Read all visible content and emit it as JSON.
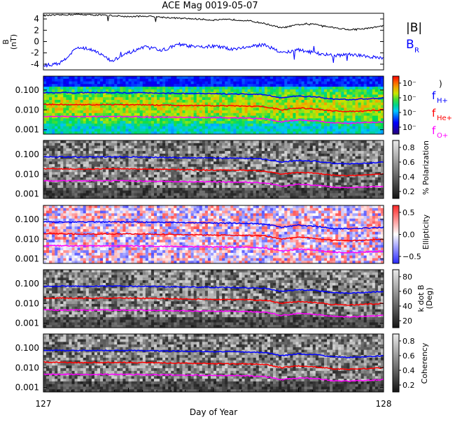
{
  "chart_data": {
    "type": "line",
    "title": "ACE Mag 0019-05-07",
    "xlabel": "Day of Year",
    "xlim": [
      127,
      128
    ],
    "x_ticks": [
      "127",
      "128"
    ],
    "panels": [
      {
        "id": "mag",
        "kind": "line",
        "ylabel": "B (nT)",
        "ylabel_line1": "B",
        "ylabel_line2": "(nT)",
        "ylim": [
          -5,
          5
        ],
        "yticks": [
          "4",
          "2",
          "0",
          "-2",
          "-4"
        ],
        "ytick_values": [
          4,
          2,
          0,
          -2,
          -4
        ],
        "series": [
          {
            "name": "|B|",
            "color": "#000000",
            "x": [
              127.0,
              127.05,
              127.1,
              127.15,
              127.2,
              127.25,
              127.3,
              127.35,
              127.4,
              127.45,
              127.5,
              127.55,
              127.6,
              127.65,
              127.7,
              127.75,
              127.8,
              127.85,
              127.9,
              127.95,
              128.0
            ],
            "values": [
              4.6,
              4.7,
              4.8,
              4.7,
              4.6,
              4.4,
              4.5,
              4.3,
              4.1,
              4.0,
              3.8,
              3.9,
              3.7,
              3.2,
              2.4,
              3.0,
              3.1,
              2.5,
              2.1,
              2.3,
              2.8
            ]
          },
          {
            "name": "B_R",
            "color": "#0000ff",
            "x": [
              127.0,
              127.05,
              127.1,
              127.15,
              127.2,
              127.25,
              127.3,
              127.35,
              127.4,
              127.45,
              127.5,
              127.55,
              127.6,
              127.65,
              127.7,
              127.75,
              127.8,
              127.85,
              127.9,
              127.95,
              128.0
            ],
            "values": [
              -4.3,
              -3.8,
              -1.0,
              -1.5,
              -3.5,
              -2.0,
              -1.0,
              -1.5,
              -0.5,
              -1.0,
              -0.8,
              -1.3,
              -1.0,
              -0.5,
              -2.0,
              -1.5,
              -2.0,
              -2.5,
              -2.3,
              -2.6,
              -3.0
            ]
          }
        ]
      },
      {
        "id": "power",
        "kind": "spectrogram",
        "yticks": [
          "0.100",
          "0.010",
          "0.001"
        ],
        "ytick_values": [
          0.1,
          0.01,
          0.001
        ],
        "ylim": [
          0.0006,
          0.5
        ],
        "colorbar_ticks": [
          "10⁻",
          "10⁻",
          "10⁻",
          "10⁻"
        ],
        "colorbar_label": ")",
        "palette": "rainbow"
      },
      {
        "id": "polarization",
        "kind": "spectrogram",
        "yticks": [
          "0.100",
          "0.010",
          "0.001"
        ],
        "ytick_values": [
          0.1,
          0.01,
          0.001
        ],
        "ylim": [
          0.0006,
          0.5
        ],
        "colorbar_ticks": [
          "0.8",
          "0.6",
          "0.4",
          "0.2"
        ],
        "colorbar_label": "% Polarization",
        "palette": "gray"
      },
      {
        "id": "ellipticity",
        "kind": "spectrogram",
        "yticks": [
          "0.100",
          "0.010",
          "0.001"
        ],
        "ytick_values": [
          0.1,
          0.01,
          0.001
        ],
        "ylim": [
          0.0006,
          0.5
        ],
        "colorbar_ticks": [
          "0.5",
          "0.0",
          "−0.5"
        ],
        "colorbar_label": "Ellipticity",
        "palette": "bwr"
      },
      {
        "id": "kdotb",
        "kind": "spectrogram",
        "yticks": [
          "0.100",
          "0.010",
          "0.001"
        ],
        "ytick_values": [
          0.1,
          0.01,
          0.001
        ],
        "ylim": [
          0.0006,
          0.5
        ],
        "colorbar_ticks": [
          "80",
          "60",
          "40",
          "20"
        ],
        "colorbar_label_line1": "k dot B",
        "colorbar_label_line2": "(Deg)",
        "palette": "gray"
      },
      {
        "id": "coherency",
        "kind": "spectrogram",
        "yticks": [
          "0.100",
          "0.010",
          "0.001"
        ],
        "ytick_values": [
          0.1,
          0.01,
          0.001
        ],
        "ylim": [
          0.0006,
          0.5
        ],
        "colorbar_ticks": [
          "0.8",
          "0.6",
          "0.4",
          "0.2"
        ],
        "colorbar_label": "Coherency",
        "palette": "gray"
      }
    ],
    "gyrofrequency_lines": [
      {
        "name": "f_H+",
        "color": "#0000ff",
        "x": [
          127.0,
          127.1,
          127.2,
          127.3,
          127.4,
          127.5,
          127.6,
          127.65,
          127.7,
          127.75,
          127.8,
          127.85,
          127.9,
          127.95,
          128.0
        ],
        "values": [
          0.075,
          0.073,
          0.074,
          0.072,
          0.068,
          0.065,
          0.062,
          0.058,
          0.04,
          0.05,
          0.045,
          0.035,
          0.033,
          0.036,
          0.04
        ]
      },
      {
        "name": "f_He+",
        "color": "#ff0000",
        "x": [
          127.0,
          127.1,
          127.2,
          127.3,
          127.4,
          127.5,
          127.6,
          127.65,
          127.7,
          127.75,
          127.8,
          127.85,
          127.9,
          127.95,
          128.0
        ],
        "values": [
          0.019,
          0.018,
          0.0185,
          0.018,
          0.017,
          0.016,
          0.0155,
          0.0145,
          0.01,
          0.0125,
          0.011,
          0.0088,
          0.0083,
          0.009,
          0.01
        ]
      },
      {
        "name": "f_O+",
        "color": "#ff00ff",
        "x": [
          127.0,
          127.1,
          127.2,
          127.3,
          127.4,
          127.5,
          127.6,
          127.65,
          127.7,
          127.75,
          127.8,
          127.85,
          127.9,
          127.95,
          128.0
        ],
        "values": [
          0.0047,
          0.0046,
          0.0046,
          0.0045,
          0.0042,
          0.0041,
          0.0039,
          0.0036,
          0.0025,
          0.0031,
          0.0028,
          0.0022,
          0.0021,
          0.0023,
          0.0025
        ]
      }
    ],
    "right_labels": {
      "mag_B": "|B|",
      "mag_BR_main": "B",
      "mag_BR_sub": "R",
      "fH_main": "f",
      "fH_sub": "H+",
      "fHe_main": "f",
      "fHe_sub": "He+",
      "fO_main": "f",
      "fO_sub": "O+"
    },
    "colors": {
      "axis": "#000000",
      "BR": "#0000ff",
      "fH": "#0000ff",
      "fHe": "#ff0000",
      "fO": "#ff00ff",
      "background": "#ffffff"
    }
  }
}
